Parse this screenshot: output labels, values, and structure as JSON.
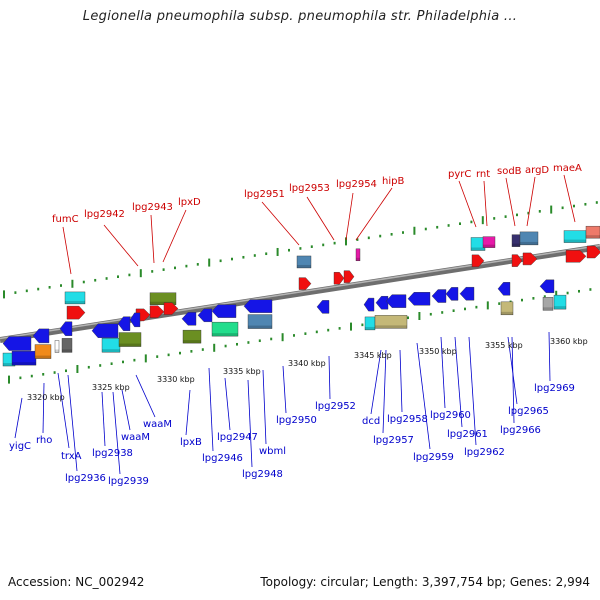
{
  "header": {
    "title": "Legionella pneumophila subsp. pneumophila str. Philadelphia ..."
  },
  "footer": {
    "accession": "Accession: NC_002942",
    "stats": "Topology: circular; Length: 3,397,754 bp; Genes: 2,994"
  },
  "colors": {
    "forward_labels": "#cc0000",
    "reverse_labels": "#0000cc",
    "backbone": "#888888",
    "tick": "#2a8a2a"
  },
  "kbp_labels": [
    "3320 kbp",
    "3325 kbp",
    "3330 kbp",
    "3335 kbp",
    "3340 kbp",
    "3345 kbp",
    "3350 kbp",
    "3355 kbp",
    "3360 kbp"
  ],
  "top_labels": [
    "fumC",
    "lpg2942",
    "lpg2943",
    "lpxD",
    "lpg2951",
    "lpg2953",
    "lpg2954",
    "hipB",
    "pyrC",
    "rnt",
    "sodB",
    "argD",
    "maeA"
  ],
  "bottom_labels": [
    "yigC",
    "rho",
    "trxA",
    "lpg2936",
    "lpg2938",
    "lpg2939",
    "waaM",
    "waaM",
    "lpxB",
    "lpg2946",
    "lpg2947",
    "lpg2948",
    "wbml",
    "lpg2950",
    "lpg2952",
    "dcd",
    "lpg2957",
    "lpg2958",
    "lpg2959",
    "lpg2960",
    "lpg2961",
    "lpg2962",
    "lpg2965",
    "lpg2966",
    "lpg2969"
  ]
}
